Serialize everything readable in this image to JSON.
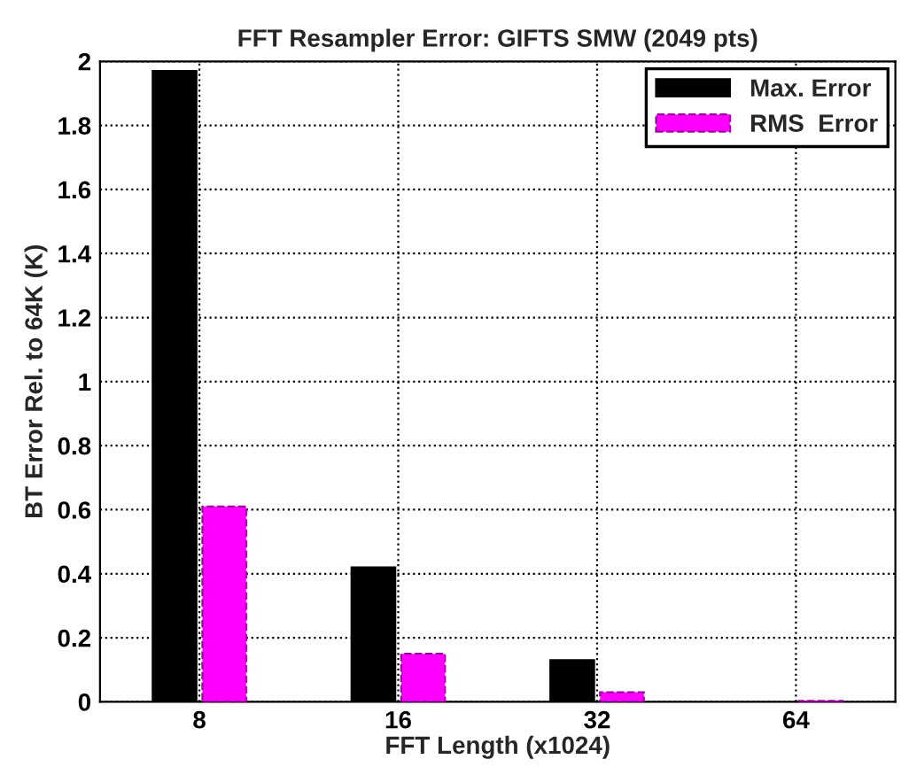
{
  "chart_data": {
    "type": "bar",
    "title": "FFT Resampler Error: GIFTS SMW (2049 pts)",
    "xlabel": "FFT Length (x1024)",
    "ylabel": "BT Error Rel. to 64K (K)",
    "categories": [
      "8",
      "16",
      "32",
      "64"
    ],
    "series": [
      {
        "name": "Max. Error",
        "color": "#000000",
        "values": [
          1.97,
          0.42,
          0.13,
          null
        ]
      },
      {
        "name": "RMS  Error",
        "color": "#ff00ff",
        "values": [
          0.61,
          0.15,
          0.03,
          0.003
        ]
      }
    ],
    "ylim": [
      0,
      2
    ],
    "yticks": [
      0,
      0.2,
      0.4,
      0.6,
      0.8,
      1,
      1.2,
      1.4,
      1.6,
      1.8,
      2
    ],
    "grid": true,
    "legend": "top right"
  }
}
